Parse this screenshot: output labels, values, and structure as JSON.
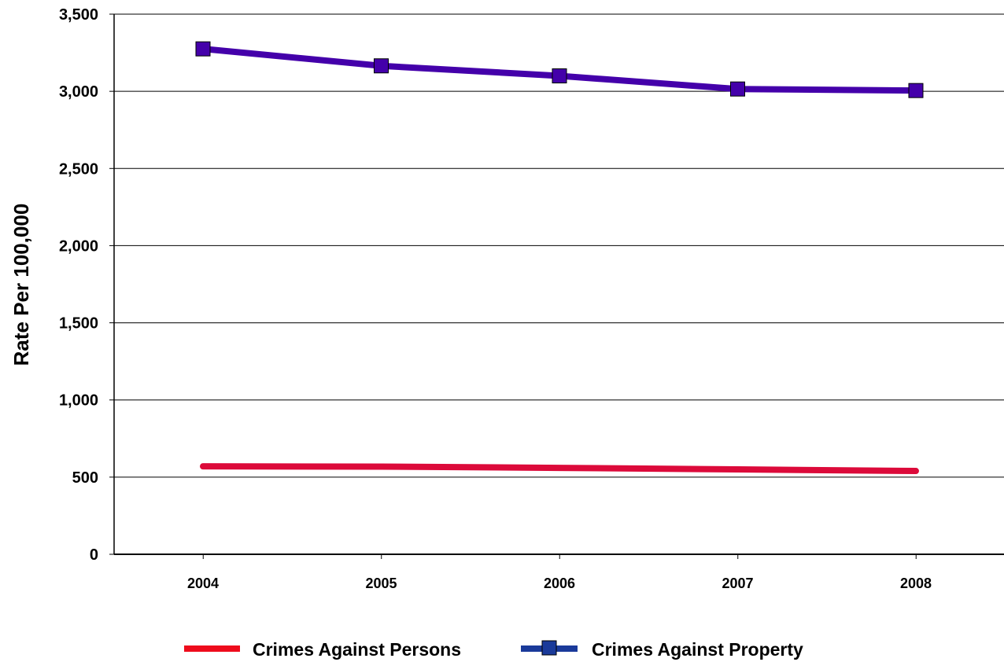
{
  "chart_data": {
    "type": "line",
    "title": "",
    "xlabel": "",
    "ylabel": "Rate Per 100,000",
    "categories": [
      "2004",
      "2005",
      "2006",
      "2007",
      "2008"
    ],
    "y_ticks": [
      "0",
      "500",
      "1,000",
      "1,500",
      "2,000",
      "2,500",
      "3,000",
      "3,500"
    ],
    "ylim": [
      0,
      3500
    ],
    "grid": "horizontal",
    "legend_position": "bottom",
    "series": [
      {
        "name": "Crimes Against Persons",
        "values": [
          570,
          568,
          560,
          550,
          540
        ],
        "color": "#dc0a3a",
        "legend_color": "#ee0c1c",
        "marker": "none"
      },
      {
        "name": "Crimes Against Property",
        "values": [
          3275,
          3165,
          3100,
          3015,
          3005
        ],
        "color": "#4400aa",
        "legend_color": "#1a3a9a",
        "marker": "square"
      }
    ]
  }
}
